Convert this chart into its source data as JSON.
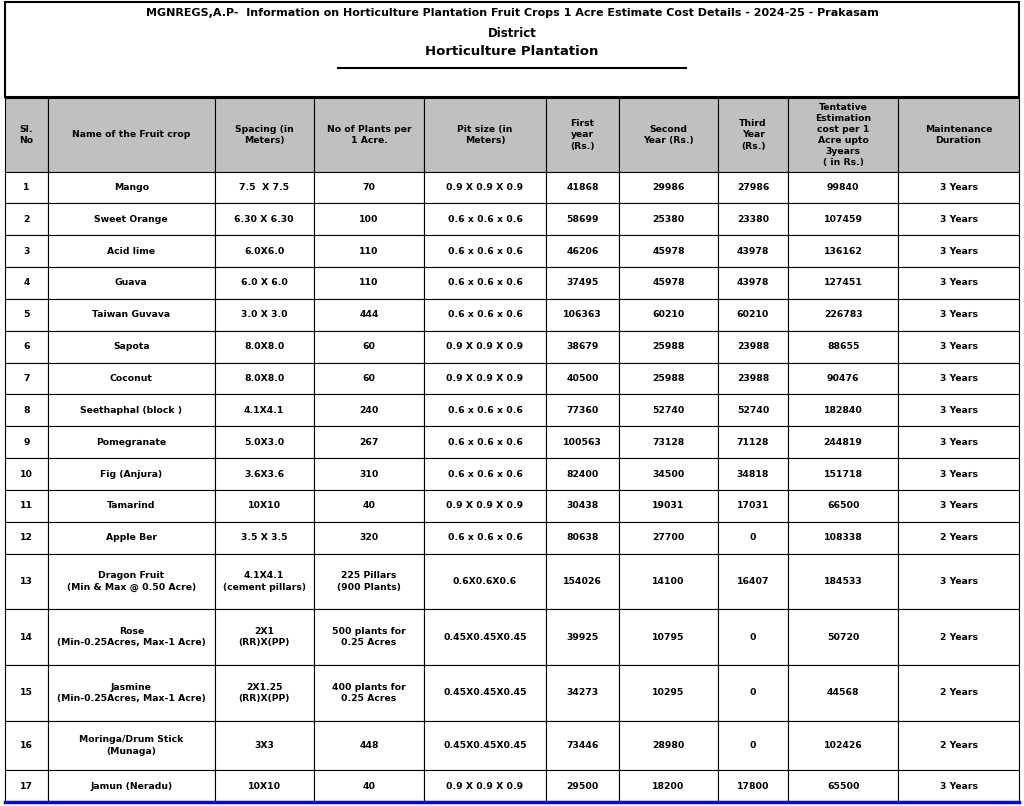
{
  "title_line1": "MGNREGS,A.P-  Information on Horticulture Plantation Fruit Crops 1 Acre Estimate Cost Details - 2024-25 - Prakasam",
  "title_line2": "District",
  "title_line3": "Horticulture Plantation",
  "headers": [
    "Sl.\nNo",
    "Name of the Fruit crop",
    "Spacing (in\nMeters)",
    "No of Plants per\n1 Acre.",
    "Pit size (in\nMeters)",
    "First\nyear\n(Rs.)",
    "Second\nYear (Rs.)",
    "Third\nYear\n(Rs.)",
    "Tentative\nEstimation\ncost per 1\nAcre upto\n3years\n( in Rs.)",
    "Maintenance\nDuration"
  ],
  "rows": [
    [
      "1",
      "Mango",
      "7.5  X 7.5",
      "70",
      "0.9 X 0.9 X 0.9",
      "41868",
      "29986",
      "27986",
      "99840",
      "3 Years"
    ],
    [
      "2",
      "Sweet Orange",
      "6.30 X 6.30",
      "100",
      "0.6 x 0.6 x 0.6",
      "58699",
      "25380",
      "23380",
      "107459",
      "3 Years"
    ],
    [
      "3",
      "Acid lime",
      "6.0X6.0",
      "110",
      "0.6 x 0.6 x 0.6",
      "46206",
      "45978",
      "43978",
      "136162",
      "3 Years"
    ],
    [
      "4",
      "Guava",
      "6.0 X 6.0",
      "110",
      "0.6 x 0.6 x 0.6",
      "37495",
      "45978",
      "43978",
      "127451",
      "3 Years"
    ],
    [
      "5",
      "Taiwan Guvava",
      "3.0 X 3.0",
      "444",
      "0.6 x 0.6 x 0.6",
      "106363",
      "60210",
      "60210",
      "226783",
      "3 Years"
    ],
    [
      "6",
      "Sapota",
      "8.0X8.0",
      "60",
      "0.9 X 0.9 X 0.9",
      "38679",
      "25988",
      "23988",
      "88655",
      "3 Years"
    ],
    [
      "7",
      "Coconut",
      "8.0X8.0",
      "60",
      "0.9 X 0.9 X 0.9",
      "40500",
      "25988",
      "23988",
      "90476",
      "3 Years"
    ],
    [
      "8",
      "Seethaphal (block )",
      "4.1X4.1",
      "240",
      "0.6 x 0.6 x 0.6",
      "77360",
      "52740",
      "52740",
      "182840",
      "3 Years"
    ],
    [
      "9",
      "Pomegranate",
      "5.0X3.0",
      "267",
      "0.6 x 0.6 x 0.6",
      "100563",
      "73128",
      "71128",
      "244819",
      "3 Years"
    ],
    [
      "10",
      "Fig (Anjura)",
      "3.6X3.6",
      "310",
      "0.6 x 0.6 x 0.6",
      "82400",
      "34500",
      "34818",
      "151718",
      "3 Years"
    ],
    [
      "11",
      "Tamarind",
      "10X10",
      "40",
      "0.9 X 0.9 X 0.9",
      "30438",
      "19031",
      "17031",
      "66500",
      "3 Years"
    ],
    [
      "12",
      "Apple Ber",
      "3.5 X 3.5",
      "320",
      "0.6 x 0.6 x 0.6",
      "80638",
      "27700",
      "0",
      "108338",
      "2 Years"
    ],
    [
      "13",
      "Dragon Fruit\n(Min & Max @ 0.50 Acre)",
      "4.1X4.1\n(cement pillars)",
      "225 Pillars\n(900 Plants)",
      "0.6X0.6X0.6",
      "154026",
      "14100",
      "16407",
      "184533",
      "3 Years"
    ],
    [
      "14",
      "Rose\n(Min-0.25Acres, Max-1 Acre)",
      "2X1\n(RR)X(PP)",
      "500 plants for\n0.25 Acres",
      "0.45X0.45X0.45",
      "39925",
      "10795",
      "0",
      "50720",
      "2 Years"
    ],
    [
      "15",
      "Jasmine\n(Min-0.25Acres, Max-1 Acre)",
      "2X1.25\n(RR)X(PP)",
      "400 plants for\n0.25 Acres",
      "0.45X0.45X0.45",
      "34273",
      "10295",
      "0",
      "44568",
      "2 Years"
    ],
    [
      "16",
      "Moringa/Drum Stick\n(Munaga)",
      "3X3",
      "448",
      "0.45X0.45X0.45",
      "73446",
      "28980",
      "0",
      "102426",
      "2 Years"
    ],
    [
      "17",
      "Jamun (Neradu)",
      "10X10",
      "40",
      "0.9 X 0.9 X 0.9",
      "29500",
      "18200",
      "17800",
      "65500",
      "3 Years"
    ]
  ],
  "header_bg": "#C0C0C0",
  "row_bg_white": "#FFFFFF",
  "border_color": "#000000",
  "text_color": "#000000",
  "title_bg": "#FFFFFF",
  "col_props": [
    0.038,
    0.148,
    0.088,
    0.098,
    0.108,
    0.065,
    0.088,
    0.062,
    0.098,
    0.107
  ],
  "fig_width": 10.24,
  "fig_height": 8.06
}
